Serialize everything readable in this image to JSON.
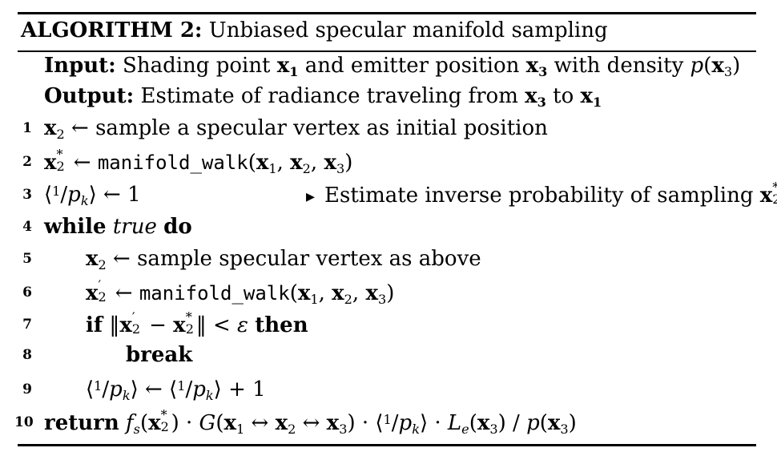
{
  "title": {
    "label": "ALGORITHM 2:",
    "name": "Unbiased specular manifold sampling"
  },
  "header": {
    "input_label": "Input:",
    "input_text_1": "Shading point",
    "input_text_2": "and emitter position",
    "input_text_3": "with density",
    "output_label": "Output:",
    "output_text_1": "Estimate of radiance traveling from",
    "output_text_2": "to"
  },
  "lines": [
    {
      "n": "1",
      "text": "sample a specular vertex as initial position"
    },
    {
      "n": "2",
      "func": "manifold_walk"
    },
    {
      "n": "3",
      "value": "1",
      "comment": "Estimate inverse probability of sampling"
    },
    {
      "n": "4",
      "kw1": "while",
      "cond": "true",
      "kw2": "do"
    },
    {
      "n": "5",
      "text": "sample specular vertex as above"
    },
    {
      "n": "6",
      "func": "manifold_walk"
    },
    {
      "n": "7",
      "kw1": "if",
      "kw2": "then"
    },
    {
      "n": "8",
      "kw": "break"
    },
    {
      "n": "9",
      "plus": "+ 1"
    },
    {
      "n": "10",
      "kw": "return"
    }
  ]
}
